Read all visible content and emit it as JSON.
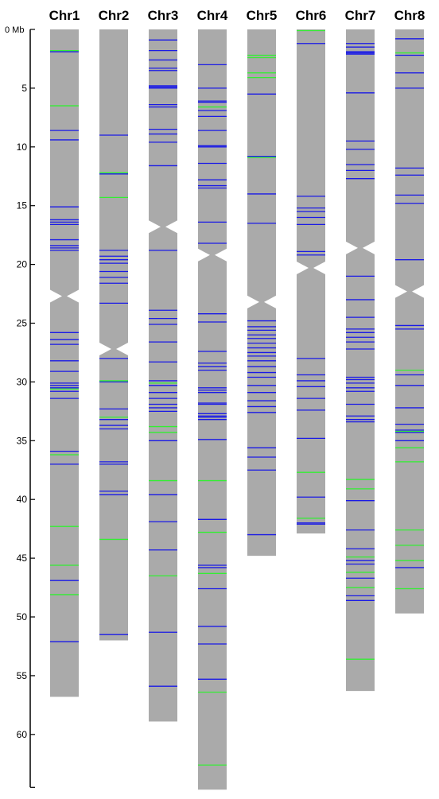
{
  "axis": {
    "unit_label": "0 Mb",
    "ticks": [
      5,
      10,
      15,
      20,
      25,
      30,
      35,
      40,
      45,
      50,
      55,
      60
    ],
    "max": 64.5
  },
  "colors": {
    "chromosome": "#aaaaaa",
    "marker_blue": "#1a1ae6",
    "marker_green": "#33ee33",
    "axis": "#000000"
  },
  "chart_data": {
    "type": "chromosome_map",
    "chromosomes": [
      {
        "name": "Chr1",
        "length": 56.8,
        "centromere": 22.7,
        "blue": [
          1.9,
          8.6,
          9.4,
          15.1,
          16.2,
          16.4,
          16.6,
          17.9,
          18.4,
          18.6,
          18.8,
          25.8,
          26.4,
          26.8,
          28.2,
          29.1,
          30.1,
          30.3,
          30.5,
          30.8,
          31.4,
          35.9,
          37.0,
          46.9,
          52.1
        ],
        "green": [
          1.8,
          6.5,
          30.6,
          36.2,
          42.3,
          45.6,
          48.1
        ]
      },
      {
        "name": "Chr2",
        "length": 52.0,
        "centromere": 27.2,
        "blue": [
          9.0,
          12.3,
          18.8,
          19.3,
          19.6,
          19.9,
          20.6,
          21.1,
          21.6,
          23.3,
          28.0,
          30.0,
          32.3,
          33.2,
          33.7,
          34.0,
          36.8,
          37.0,
          39.3,
          39.6,
          51.5
        ],
        "green": [
          12.2,
          14.3,
          29.9,
          33.0,
          43.4
        ]
      },
      {
        "name": "Chr3",
        "length": 58.9,
        "centromere": 16.8,
        "blue": [
          0.9,
          1.8,
          2.6,
          3.3,
          3.5,
          4.8,
          4.9,
          5.0,
          6.4,
          6.6,
          8.5,
          8.9,
          9.6,
          11.6,
          18.8,
          23.9,
          24.6,
          25.1,
          26.6,
          28.3,
          29.9,
          30.3,
          30.9,
          31.4,
          31.9,
          32.2,
          32.5,
          35.0,
          39.6,
          41.9,
          44.3,
          51.3,
          55.9
        ],
        "green": [
          30.1,
          33.8,
          34.3,
          38.4,
          46.5
        ]
      },
      {
        "name": "Chr4",
        "length": 64.7,
        "centromere": 19.2,
        "blue": [
          3.0,
          5.0,
          6.1,
          6.2,
          6.9,
          7.4,
          8.6,
          9.9,
          10.0,
          11.4,
          12.8,
          13.3,
          13.5,
          16.4,
          18.2,
          24.2,
          24.9,
          27.4,
          28.4,
          28.7,
          29.0,
          30.5,
          30.7,
          30.9,
          31.8,
          31.9,
          32.7,
          32.9,
          33.0,
          33.2,
          34.9,
          41.7,
          45.6,
          45.8,
          47.6,
          50.8,
          52.3,
          55.3
        ],
        "green": [
          6.6,
          38.4,
          42.8,
          46.3,
          56.4,
          62.6
        ]
      },
      {
        "name": "Chr5",
        "length": 44.8,
        "centromere": 23.2,
        "blue": [
          5.5,
          10.8,
          14.0,
          16.5,
          24.8,
          25.3,
          25.6,
          26.0,
          26.3,
          26.7,
          27.1,
          27.5,
          27.8,
          28.2,
          28.7,
          29.2,
          29.6,
          30.3,
          30.9,
          31.6,
          32.1,
          32.6,
          35.6,
          36.4,
          37.5,
          43.0
        ],
        "green": [
          2.2,
          2.4,
          3.7,
          4.1,
          10.9
        ]
      },
      {
        "name": "Chr6",
        "length": 42.9,
        "centromere": 20.3,
        "blue": [
          1.2,
          14.2,
          15.2,
          15.5,
          16.0,
          16.6,
          18.9,
          19.2,
          28.0,
          29.4,
          29.9,
          30.4,
          31.4,
          32.4,
          34.8,
          39.8,
          42.0,
          42.1
        ],
        "green": [
          0.1,
          37.7,
          41.6
        ]
      },
      {
        "name": "Chr7",
        "length": 56.3,
        "centromere": 18.6,
        "blue": [
          1.2,
          1.5,
          1.9,
          2.0,
          2.1,
          5.4,
          9.5,
          10.2,
          11.5,
          12.0,
          12.7,
          21.0,
          23.0,
          24.5,
          25.5,
          25.8,
          26.2,
          26.6,
          27.2,
          29.6,
          29.8,
          30.1,
          30.5,
          30.8,
          31.9,
          32.9,
          33.2,
          33.4,
          40.1,
          42.6,
          44.2,
          45.2,
          45.5,
          46.7,
          48.2,
          48.6
        ],
        "green": [
          38.3,
          39.1,
          44.9,
          46.2,
          47.5,
          53.6
        ]
      },
      {
        "name": "Chr8",
        "length": 49.7,
        "centromere": 22.3,
        "blue": [
          0.8,
          2.2,
          3.7,
          5.0,
          11.8,
          12.4,
          14.1,
          14.8,
          19.6,
          25.2,
          25.5,
          29.4,
          30.3,
          32.2,
          33.6,
          34.1,
          34.3,
          35.0,
          45.8
        ],
        "green": [
          2.0,
          29.0,
          34.2,
          35.6,
          36.8,
          42.6,
          43.9,
          45.2,
          47.6
        ]
      }
    ]
  }
}
